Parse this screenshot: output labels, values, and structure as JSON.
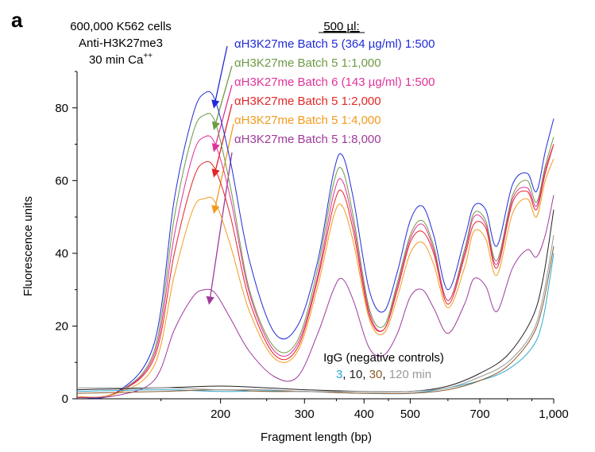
{
  "chart_data": {
    "type": "line",
    "panel_label": "a",
    "xlabel": "Fragment length (bp)",
    "ylabel": "Fluorescence units",
    "x_scale": "log",
    "xlim": [
      100,
      1000
    ],
    "ylim": [
      0,
      90
    ],
    "x_ticks": [
      200,
      300,
      400,
      500,
      700,
      1000
    ],
    "x_tick_labels": [
      "200",
      "300",
      "400",
      "500",
      "700",
      "1,000"
    ],
    "y_ticks": [
      0,
      20,
      40,
      60,
      80
    ],
    "y_tick_labels": [
      "0",
      "20",
      "40",
      "60",
      "80"
    ],
    "grid": false,
    "sample_info": [
      "600,000 K562 cells",
      "Anti-H3K27me3",
      "30 min Ca"
    ],
    "sample_info_superscript": "++",
    "legend_title": "500 µl:",
    "legend_placement": "top-center",
    "series": [
      {
        "name": "αH3K27me Batch 5 (364 µg/ml) 1:500",
        "color": "#1f2bd8",
        "x": [
          100,
          120,
          145,
          160,
          175,
          185,
          195,
          210,
          230,
          260,
          290,
          320,
          345,
          360,
          380,
          410,
          440,
          470,
          500,
          530,
          560,
          600,
          650,
          680,
          720,
          760,
          820,
          880,
          920,
          960,
          1000
        ],
        "y": [
          0.5,
          1.5,
          15,
          55,
          78,
          84,
          82,
          65,
          38,
          18,
          20,
          38,
          62,
          67,
          55,
          30,
          24,
          35,
          49,
          53,
          45,
          30,
          44,
          53,
          52,
          42,
          59,
          62,
          57,
          68,
          77
        ]
      },
      {
        "name": "αH3K27me Batch 5 1:1,000",
        "color": "#6e9a44",
        "x": [
          100,
          120,
          145,
          160,
          175,
          185,
          195,
          210,
          230,
          260,
          290,
          320,
          345,
          360,
          380,
          410,
          440,
          470,
          500,
          530,
          560,
          600,
          650,
          680,
          720,
          760,
          820,
          880,
          920,
          960,
          1000
        ],
        "y": [
          0.5,
          1.5,
          13,
          50,
          73,
          78,
          76,
          58,
          30,
          14,
          16,
          36,
          59,
          63,
          50,
          25,
          20,
          32,
          45,
          49,
          42,
          27,
          41,
          51,
          49,
          38,
          56,
          60,
          54,
          64,
          72
        ]
      },
      {
        "name": "αH3K27me Batch 6 (143 µg/ml) 1:500",
        "color": "#e0329a",
        "x": [
          100,
          120,
          145,
          160,
          175,
          185,
          195,
          210,
          230,
          260,
          290,
          320,
          345,
          360,
          380,
          410,
          440,
          470,
          500,
          530,
          560,
          600,
          650,
          680,
          720,
          760,
          820,
          880,
          920,
          960,
          1000
        ],
        "y": [
          0.5,
          1.5,
          12,
          45,
          67,
          72,
          70,
          55,
          29,
          13,
          15,
          34,
          56,
          60,
          48,
          24,
          19,
          31,
          44,
          48,
          41,
          27,
          40,
          50,
          48,
          37,
          55,
          58,
          53,
          63,
          70
        ]
      },
      {
        "name": "αH3K27me Batch 5 1:2,000",
        "color": "#e32626",
        "x": [
          100,
          120,
          145,
          160,
          175,
          185,
          195,
          210,
          230,
          260,
          290,
          320,
          345,
          360,
          380,
          410,
          440,
          470,
          500,
          530,
          560,
          600,
          650,
          680,
          720,
          760,
          820,
          880,
          920,
          960,
          1000
        ],
        "y": [
          0.5,
          1.5,
          11,
          40,
          60,
          65,
          63,
          50,
          27,
          12,
          14,
          33,
          53,
          57,
          46,
          23,
          19,
          30,
          43,
          46,
          40,
          26,
          39,
          48,
          47,
          36,
          54,
          57,
          52,
          62,
          70
        ]
      },
      {
        "name": "αH3K27me Batch 5 1:4,000",
        "color": "#f39a1e",
        "x": [
          100,
          120,
          145,
          160,
          175,
          185,
          195,
          210,
          230,
          260,
          290,
          320,
          345,
          360,
          380,
          410,
          440,
          470,
          500,
          530,
          560,
          600,
          650,
          680,
          720,
          760,
          820,
          880,
          920,
          960,
          1000
        ],
        "y": [
          0.5,
          1.3,
          9,
          34,
          52,
          55,
          54,
          42,
          24,
          11,
          13,
          31,
          50,
          53,
          43,
          22,
          18,
          28,
          40,
          43,
          37,
          25,
          36,
          46,
          44,
          34,
          51,
          55,
          50,
          60,
          66
        ]
      },
      {
        "name": "αH3K27me Batch 5 1:8,000",
        "color": "#a0399c",
        "x": [
          100,
          120,
          145,
          160,
          175,
          185,
          195,
          210,
          230,
          260,
          290,
          320,
          345,
          360,
          380,
          410,
          440,
          470,
          500,
          530,
          560,
          600,
          650,
          680,
          720,
          760,
          820,
          880,
          920,
          960,
          1000
        ],
        "y": [
          0.3,
          0.8,
          5,
          19,
          28,
          30,
          29,
          22,
          13,
          6,
          6,
          18,
          30,
          33,
          27,
          14,
          12,
          18,
          28,
          30,
          25,
          18,
          26,
          33,
          31,
          24,
          36,
          41,
          39,
          45,
          56
        ]
      },
      {
        "name": "IgG 3 min",
        "color": "#2aa6cf",
        "x": [
          100,
          150,
          200,
          250,
          300,
          400,
          500,
          600,
          700,
          800,
          900,
          950,
          1000
        ],
        "y": [
          2,
          2.5,
          2,
          2.2,
          2,
          1.5,
          1.5,
          3,
          5,
          8,
          14,
          22,
          40
        ]
      },
      {
        "name": "IgG 10 min",
        "color": "#222222",
        "x": [
          100,
          150,
          200,
          250,
          300,
          400,
          500,
          600,
          700,
          800,
          900,
          950,
          1000
        ],
        "y": [
          2.5,
          3,
          3.5,
          3,
          2.5,
          2,
          2,
          3.5,
          7,
          12,
          22,
          33,
          52
        ]
      },
      {
        "name": "IgG 30 min",
        "color": "#8b5a2b",
        "x": [
          100,
          150,
          200,
          250,
          300,
          400,
          500,
          600,
          700,
          800,
          900,
          950,
          1000
        ],
        "y": [
          1.5,
          2,
          2.5,
          2,
          2,
          1.5,
          1.5,
          2.5,
          5,
          9,
          17,
          26,
          42
        ]
      },
      {
        "name": "IgG 120 min",
        "color": "#9a9a9a",
        "x": [
          100,
          150,
          200,
          250,
          300,
          400,
          500,
          600,
          700,
          800,
          900,
          950,
          1000
        ],
        "y": [
          3,
          3,
          2.5,
          2.5,
          2,
          2,
          2,
          3,
          6,
          10,
          18,
          28,
          45
        ]
      }
    ],
    "legend_entries": [
      {
        "text": "αH3K27me Batch 5 (364 µg/ml) 1:500",
        "color": "#1f2bd8"
      },
      {
        "text": "αH3K27me Batch 5 1:1,000",
        "color": "#6e9a44"
      },
      {
        "text": "αH3K27me Batch 6 (143 µg/ml) 1:500",
        "color": "#e0329a"
      },
      {
        "text": "αH3K27me Batch 5 1:2,000",
        "color": "#e32626"
      },
      {
        "text": "αH3K27me Batch 5 1:4,000",
        "color": "#f39a1e"
      },
      {
        "text": "αH3K27me Batch 5 1:8,000",
        "color": "#a0399c"
      }
    ],
    "igg_label": {
      "title": "IgG (negative controls)",
      "times": [
        {
          "text": "3",
          "color": "#2aa6cf"
        },
        {
          "text": "10",
          "color": "#222222"
        },
        {
          "text": "30",
          "color": "#8b5a2b"
        },
        {
          "text": "120 min",
          "color": "#9a9a9a"
        }
      ]
    }
  }
}
